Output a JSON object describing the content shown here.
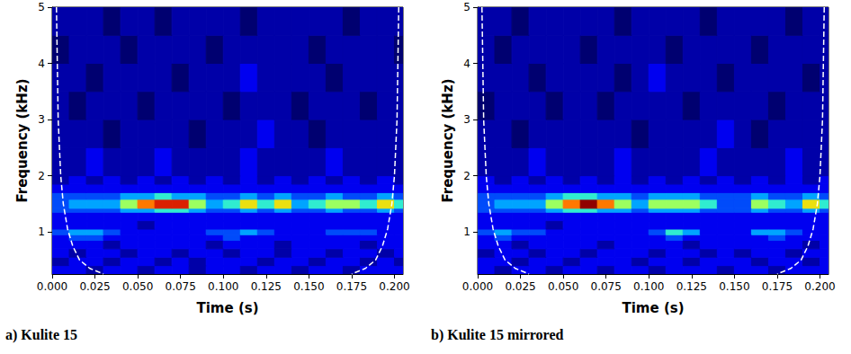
{
  "chart_data": [
    {
      "type": "heatmap",
      "title": "a) Kulite 15",
      "x_label": "Time (s)",
      "y_label": "Frequency (kHz)",
      "xlim": [
        0,
        0.205
      ],
      "ylim": [
        0.25,
        5
      ],
      "xticks": [
        {
          "value": 0,
          "label": "0.000"
        },
        {
          "value": 0.025,
          "label": "0.025"
        },
        {
          "value": 0.05,
          "label": "0.050"
        },
        {
          "value": 0.075,
          "label": "0.075"
        },
        {
          "value": 0.1,
          "label": "0.100"
        },
        {
          "value": 0.125,
          "label": "0.125"
        },
        {
          "value": 0.15,
          "label": "0.150"
        },
        {
          "value": 0.175,
          "label": "0.175"
        },
        {
          "value": 0.2,
          "label": "0.200"
        }
      ],
      "yticks": [
        1,
        2,
        3,
        4,
        5
      ],
      "grid": false,
      "zlim": [
        0,
        10
      ],
      "time_edges": [
        0,
        0.01,
        0.02,
        0.03,
        0.04,
        0.05,
        0.06,
        0.07,
        0.08,
        0.09,
        0.1,
        0.11,
        0.12,
        0.13,
        0.14,
        0.15,
        0.16,
        0.17,
        0.18,
        0.19,
        0.2,
        0.205
      ],
      "frequency_edges": [
        0.25,
        0.4,
        0.55,
        0.7,
        0.85,
        0.95,
        1.05,
        1.2,
        1.35,
        1.42,
        1.58,
        1.7,
        1.85,
        2.0,
        2.5,
        3.0,
        3.5,
        4.0,
        4.5,
        5.0
      ],
      "z": [
        [
          2,
          2,
          1,
          2,
          2,
          1,
          2,
          2,
          1,
          2,
          2,
          1,
          2,
          2,
          1,
          2,
          2,
          1,
          2,
          2,
          2
        ],
        [
          1,
          2,
          2,
          1,
          2,
          2,
          1,
          2,
          1,
          2,
          2,
          2,
          1,
          2,
          2,
          1,
          2,
          2,
          1,
          2,
          1
        ],
        [
          2,
          1,
          2,
          2,
          1,
          2,
          2,
          1,
          2,
          2,
          1,
          2,
          2,
          1,
          2,
          2,
          1,
          2,
          2,
          1,
          2
        ],
        [
          2,
          2,
          2,
          1,
          2,
          2,
          2,
          2,
          2,
          1,
          2,
          2,
          2,
          1,
          2,
          2,
          2,
          2,
          1,
          2,
          2
        ],
        [
          2,
          3,
          3,
          2,
          2,
          2,
          2,
          2,
          2,
          2,
          3,
          2,
          2,
          2,
          2,
          2,
          2,
          2,
          2,
          2,
          2
        ],
        [
          3,
          4,
          4,
          3,
          2,
          2,
          2,
          2,
          2,
          3,
          3,
          4,
          3,
          2,
          2,
          2,
          3,
          3,
          3,
          2,
          2
        ],
        [
          2,
          2,
          2,
          2,
          2,
          1,
          2,
          2,
          2,
          2,
          2,
          2,
          2,
          2,
          2,
          2,
          2,
          2,
          2,
          2,
          2
        ],
        [
          2,
          2,
          2,
          2,
          2,
          2,
          2,
          2,
          2,
          2,
          2,
          2,
          2,
          2,
          2,
          2,
          2,
          2,
          2,
          2,
          2
        ],
        [
          3,
          3,
          3,
          3,
          4,
          4,
          5,
          5,
          4,
          3,
          3,
          4,
          3,
          4,
          3,
          3,
          4,
          3,
          3,
          4,
          3
        ],
        [
          3,
          4,
          4,
          4,
          6,
          8,
          9,
          9,
          6,
          4,
          5,
          7,
          5,
          7,
          4,
          5,
          6,
          6,
          5,
          7,
          5
        ],
        [
          3,
          3,
          3,
          3,
          4,
          4,
          5,
          4,
          4,
          3,
          3,
          4,
          3,
          4,
          3,
          3,
          4,
          3,
          3,
          4,
          3
        ],
        [
          2,
          2,
          2,
          2,
          2,
          2,
          2,
          2,
          2,
          2,
          2,
          2,
          2,
          2,
          2,
          2,
          2,
          2,
          2,
          2,
          2
        ],
        [
          1,
          2,
          1,
          2,
          1,
          2,
          1,
          2,
          1,
          2,
          1,
          2,
          1,
          2,
          1,
          2,
          1,
          2,
          1,
          2,
          1
        ],
        [
          1,
          1,
          2,
          1,
          1,
          1,
          2,
          1,
          1,
          1,
          1,
          2,
          1,
          1,
          1,
          1,
          2,
          1,
          1,
          1,
          1
        ],
        [
          1,
          1,
          1,
          0,
          1,
          1,
          1,
          1,
          0,
          1,
          1,
          1,
          2,
          1,
          1,
          0,
          1,
          1,
          1,
          1,
          1
        ],
        [
          1,
          0,
          1,
          1,
          1,
          0,
          1,
          1,
          1,
          1,
          0,
          1,
          1,
          1,
          0,
          1,
          1,
          1,
          0,
          1,
          1
        ],
        [
          1,
          1,
          0,
          1,
          1,
          1,
          1,
          0,
          1,
          1,
          1,
          2,
          1,
          1,
          1,
          1,
          0,
          1,
          1,
          1,
          1
        ],
        [
          0,
          1,
          1,
          1,
          0,
          1,
          1,
          1,
          1,
          0,
          1,
          1,
          1,
          1,
          1,
          0,
          1,
          1,
          1,
          1,
          0
        ],
        [
          1,
          1,
          1,
          0,
          1,
          1,
          0,
          1,
          1,
          1,
          1,
          0,
          1,
          1,
          1,
          1,
          1,
          0,
          1,
          1,
          1
        ]
      ],
      "lines": [
        {
          "x": [
            0.0025,
            0.003,
            0.0035,
            0.005,
            0.0065,
            0.009,
            0.012,
            0.016,
            0.022,
            0.03
          ],
          "y": [
            5,
            4,
            3,
            2,
            1.5,
            1.05,
            0.75,
            0.5,
            0.35,
            0.25
          ],
          "color": "#ffffff",
          "line_style": "dashed"
        },
        {
          "x": [
            0.2025,
            0.202,
            0.2015,
            0.2,
            0.1985,
            0.196,
            0.193,
            0.189,
            0.183,
            0.175
          ],
          "y": [
            5,
            4,
            3,
            2,
            1.5,
            1.05,
            0.75,
            0.5,
            0.35,
            0.25
          ],
          "color": "#ffffff",
          "line_style": "dashed"
        }
      ]
    },
    {
      "type": "heatmap",
      "title": "b) Kulite 15 mirrored",
      "x_label": "Time (s)",
      "y_label": "Frequency (kHz)",
      "xlim": [
        0,
        0.205
      ],
      "ylim": [
        0.25,
        5
      ],
      "xticks": [
        {
          "value": 0,
          "label": "0.000"
        },
        {
          "value": 0.025,
          "label": "0.025"
        },
        {
          "value": 0.05,
          "label": "0.050"
        },
        {
          "value": 0.075,
          "label": "0.075"
        },
        {
          "value": 0.1,
          "label": "0.100"
        },
        {
          "value": 0.125,
          "label": "0.125"
        },
        {
          "value": 0.15,
          "label": "0.150"
        },
        {
          "value": 0.175,
          "label": "0.175"
        },
        {
          "value": 0.2,
          "label": "0.200"
        }
      ],
      "yticks": [
        1,
        2,
        3,
        4,
        5
      ],
      "grid": false,
      "zlim": [
        0,
        10
      ],
      "time_edges": [
        0,
        0.01,
        0.02,
        0.03,
        0.04,
        0.05,
        0.06,
        0.07,
        0.08,
        0.09,
        0.1,
        0.11,
        0.12,
        0.13,
        0.14,
        0.15,
        0.16,
        0.17,
        0.18,
        0.19,
        0.2,
        0.205
      ],
      "frequency_edges": [
        0.25,
        0.4,
        0.55,
        0.7,
        0.85,
        0.95,
        1.05,
        1.2,
        1.35,
        1.42,
        1.58,
        1.7,
        1.85,
        2.0,
        2.5,
        3.0,
        3.5,
        4.0,
        4.5,
        5.0
      ],
      "z": [
        [
          2,
          1,
          2,
          2,
          1,
          2,
          2,
          1,
          2,
          2,
          1,
          2,
          2,
          2,
          1,
          2,
          2,
          1,
          2,
          2,
          2
        ],
        [
          2,
          2,
          1,
          2,
          2,
          1,
          2,
          2,
          2,
          1,
          2,
          2,
          1,
          2,
          2,
          2,
          1,
          2,
          2,
          1,
          2
        ],
        [
          1,
          2,
          2,
          1,
          2,
          2,
          1,
          2,
          2,
          2,
          1,
          2,
          2,
          1,
          2,
          1,
          2,
          2,
          1,
          2,
          2
        ],
        [
          2,
          2,
          1,
          2,
          2,
          2,
          2,
          1,
          2,
          2,
          2,
          2,
          1,
          2,
          2,
          2,
          2,
          2,
          2,
          1,
          2
        ],
        [
          2,
          3,
          2,
          2,
          2,
          2,
          2,
          2,
          2,
          2,
          2,
          3,
          2,
          2,
          2,
          2,
          2,
          3,
          2,
          2,
          2
        ],
        [
          3,
          4,
          3,
          3,
          2,
          2,
          2,
          2,
          2,
          2,
          3,
          5,
          4,
          2,
          2,
          2,
          4,
          4,
          3,
          2,
          2
        ],
        [
          2,
          2,
          2,
          2,
          1,
          2,
          2,
          2,
          2,
          2,
          2,
          2,
          2,
          2,
          2,
          2,
          2,
          2,
          2,
          2,
          2
        ],
        [
          2,
          2,
          2,
          2,
          2,
          2,
          2,
          2,
          2,
          2,
          2,
          2,
          2,
          2,
          2,
          2,
          2,
          2,
          2,
          2,
          2
        ],
        [
          3,
          3,
          3,
          3,
          4,
          5,
          5,
          4,
          4,
          3,
          4,
          4,
          4,
          3,
          3,
          3,
          4,
          3,
          3,
          4,
          3
        ],
        [
          3,
          4,
          4,
          4,
          6,
          8,
          10,
          8,
          6,
          4,
          6,
          6,
          6,
          5,
          3,
          3,
          6,
          5,
          4,
          7,
          5
        ],
        [
          3,
          3,
          3,
          3,
          4,
          5,
          5,
          4,
          4,
          3,
          4,
          4,
          4,
          3,
          3,
          3,
          4,
          3,
          3,
          4,
          3
        ],
        [
          2,
          2,
          2,
          2,
          2,
          2,
          2,
          2,
          2,
          2,
          2,
          2,
          2,
          2,
          2,
          2,
          2,
          2,
          2,
          2,
          2
        ],
        [
          2,
          1,
          2,
          1,
          2,
          1,
          2,
          1,
          2,
          1,
          2,
          1,
          2,
          1,
          2,
          1,
          2,
          1,
          2,
          1,
          2
        ],
        [
          1,
          1,
          1,
          2,
          1,
          1,
          1,
          1,
          2,
          1,
          1,
          1,
          1,
          2,
          1,
          1,
          1,
          1,
          2,
          1,
          1
        ],
        [
          1,
          1,
          0,
          1,
          1,
          1,
          1,
          1,
          1,
          0,
          1,
          1,
          1,
          1,
          2,
          1,
          0,
          1,
          1,
          1,
          1
        ],
        [
          0,
          1,
          1,
          1,
          0,
          1,
          1,
          0,
          1,
          1,
          1,
          1,
          0,
          1,
          1,
          1,
          1,
          0,
          1,
          1,
          1
        ],
        [
          1,
          1,
          1,
          0,
          1,
          1,
          1,
          1,
          0,
          1,
          2,
          1,
          1,
          1,
          0,
          1,
          1,
          1,
          1,
          0,
          1
        ],
        [
          1,
          0,
          1,
          1,
          1,
          1,
          0,
          1,
          1,
          1,
          1,
          0,
          1,
          1,
          1,
          1,
          0,
          1,
          1,
          1,
          1
        ],
        [
          1,
          1,
          0,
          1,
          1,
          1,
          1,
          1,
          0,
          1,
          1,
          1,
          1,
          0,
          1,
          1,
          1,
          1,
          0,
          1,
          1
        ]
      ],
      "lines": [
        {
          "x": [
            0.0025,
            0.003,
            0.0035,
            0.005,
            0.0065,
            0.009,
            0.012,
            0.016,
            0.022,
            0.03
          ],
          "y": [
            5,
            4,
            3,
            2,
            1.5,
            1.05,
            0.75,
            0.5,
            0.35,
            0.25
          ],
          "color": "#ffffff",
          "line_style": "dashed"
        },
        {
          "x": [
            0.2025,
            0.202,
            0.2015,
            0.2,
            0.1985,
            0.196,
            0.193,
            0.189,
            0.183,
            0.175
          ],
          "y": [
            5,
            4,
            3,
            2,
            1.5,
            1.05,
            0.75,
            0.5,
            0.35,
            0.25
          ],
          "color": "#ffffff",
          "line_style": "dashed"
        }
      ]
    }
  ]
}
